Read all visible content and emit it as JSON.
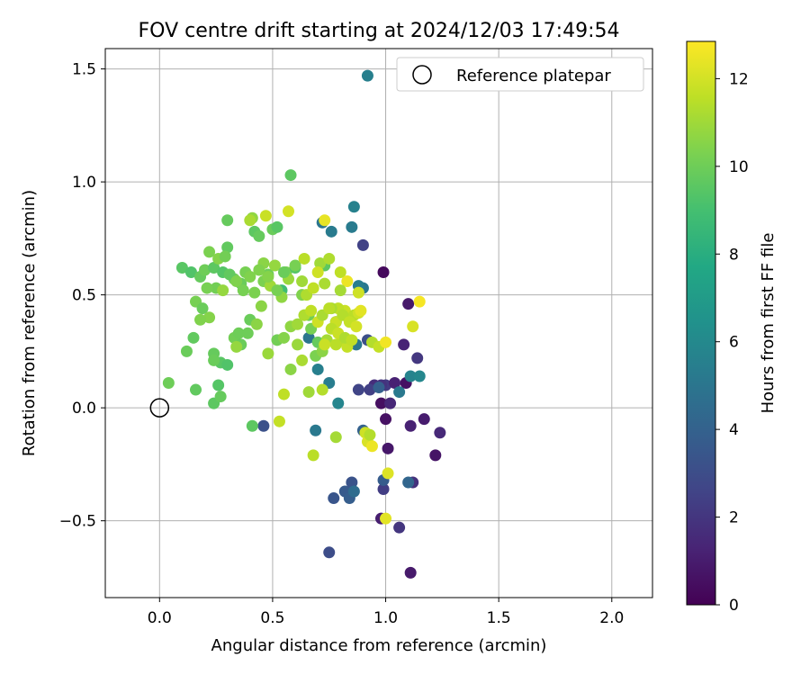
{
  "chart_data": {
    "type": "scatter",
    "title": "FOV centre drift starting at 2024/12/03 17:49:54",
    "xlabel": "Angular distance from reference (arcmin)",
    "ylabel": "Rotation from reference (arcmin)",
    "xlim": [
      -0.24,
      2.18
    ],
    "ylim": [
      -0.84,
      1.59
    ],
    "xticks": [
      0.0,
      0.5,
      1.0,
      1.5,
      2.0
    ],
    "xtick_labels": [
      "0.0",
      "0.5",
      "1.0",
      "1.5",
      "2.0"
    ],
    "yticks": [
      -0.5,
      0.0,
      0.5,
      1.0,
      1.5
    ],
    "ytick_labels": [
      "−0.5",
      "0.0",
      "0.5",
      "1.0",
      "1.5"
    ],
    "grid": true,
    "legend": {
      "placement": "top-right",
      "entries": [
        "Reference platepar"
      ]
    },
    "reference_point": {
      "name": "Reference platepar",
      "x": 0.0,
      "y": 0.0
    },
    "colorbar": {
      "label": "Hours from first FF file",
      "range": [
        0,
        12.85
      ],
      "ticks": [
        0,
        2,
        4,
        6,
        8,
        10,
        12
      ],
      "tick_labels": [
        "0",
        "2",
        "4",
        "6",
        "8",
        "10",
        "12"
      ],
      "colormap": "viridis"
    },
    "series": [
      {
        "x": [
          0.99,
          0.98,
          1.0,
          1.01,
          1.1,
          1.11,
          1.17,
          1.24,
          1.22,
          1.12,
          1.14,
          1.08,
          1.02,
          1.0,
          0.99,
          0.98,
          1.06,
          1.11,
          1.09,
          0.95,
          0.93,
          0.9,
          0.98,
          0.88,
          1.04
        ],
        "y": [
          0.6,
          0.02,
          -0.05,
          -0.18,
          0.46,
          -0.08,
          -0.05,
          -0.11,
          -0.21,
          -0.33,
          0.22,
          0.28,
          0.02,
          0.1,
          -0.36,
          -0.49,
          -0.53,
          -0.73,
          0.11,
          0.1,
          0.08,
          0.72,
          0.1,
          0.08,
          0.11
        ],
        "hours": [
          0.3,
          0.5,
          0.6,
          0.8,
          0.9,
          1.2,
          1.0,
          1.5,
          0.7,
          1.8,
          2.1,
          1.3,
          1.4,
          2.2,
          2.3,
          1.1,
          2.0,
          0.9,
          0.6,
          1.7,
          2.4,
          2.5,
          1.9,
          2.6,
          1.2
        ]
      },
      {
        "x": [
          0.46,
          0.75,
          0.77,
          0.82,
          0.84,
          0.85,
          0.86,
          0.9,
          0.99,
          0.97,
          1.1,
          1.06,
          0.72,
          0.76,
          0.86,
          0.9,
          0.88,
          0.92,
          1.11,
          1.15,
          0.69,
          0.66,
          0.75,
          0.79,
          0.83,
          0.87,
          0.85,
          0.78,
          0.7,
          0.92
        ],
        "y": [
          -0.08,
          -0.64,
          -0.4,
          -0.37,
          -0.4,
          -0.33,
          -0.37,
          -0.1,
          -0.32,
          0.09,
          -0.33,
          0.07,
          0.82,
          0.78,
          0.89,
          0.53,
          0.54,
          1.47,
          0.14,
          0.14,
          -0.1,
          0.31,
          0.11,
          0.02,
          0.29,
          0.28,
          0.8,
          0.38,
          0.17,
          0.3
        ],
        "hours": [
          3.2,
          3.0,
          3.4,
          3.6,
          3.8,
          3.3,
          4.5,
          4.0,
          3.7,
          3.9,
          4.2,
          5.2,
          5.0,
          5.3,
          5.6,
          5.1,
          5.4,
          5.5,
          5.7,
          5.9,
          5.2,
          5.0,
          5.4,
          5.8,
          4.8,
          5.1,
          5.3,
          5.7,
          5.5,
          3.1
        ]
      },
      {
        "x": [
          0.1,
          0.14,
          0.18,
          0.2,
          0.22,
          0.24,
          0.26,
          0.28,
          0.3,
          0.33,
          0.36,
          0.38,
          0.4,
          0.42,
          0.44,
          0.46,
          0.48,
          0.5,
          0.52,
          0.54,
          0.56,
          0.58,
          0.6,
          0.16,
          0.19,
          0.22,
          0.25,
          0.28,
          0.31,
          0.34,
          0.37,
          0.4,
          0.43,
          0.46,
          0.49,
          0.52,
          0.55,
          0.58,
          0.61,
          0.64,
          0.67,
          0.7,
          0.73,
          0.12,
          0.15,
          0.18,
          0.21,
          0.24,
          0.27,
          0.3,
          0.33,
          0.36,
          0.39,
          0.42,
          0.45,
          0.48,
          0.51,
          0.54,
          0.57,
          0.6,
          0.63,
          0.66,
          0.69,
          0.72,
          0.26,
          0.24,
          0.3,
          0.35,
          0.41,
          0.55,
          0.04,
          0.16,
          0.24,
          0.27,
          0.29,
          0.41,
          0.52,
          0.44,
          0.34,
          0.48,
          0.58
        ],
        "y": [
          0.62,
          0.6,
          0.58,
          0.61,
          0.69,
          0.62,
          0.66,
          0.6,
          0.71,
          0.57,
          0.55,
          0.6,
          0.58,
          0.78,
          0.76,
          0.64,
          0.59,
          0.79,
          0.8,
          0.52,
          0.6,
          1.03,
          0.62,
          0.47,
          0.44,
          0.4,
          0.53,
          0.52,
          0.59,
          0.56,
          0.52,
          0.39,
          0.37,
          0.56,
          0.54,
          0.3,
          0.31,
          0.36,
          0.28,
          0.41,
          0.35,
          0.29,
          0.63,
          0.25,
          0.31,
          0.39,
          0.53,
          0.24,
          0.2,
          0.19,
          0.31,
          0.28,
          0.33,
          0.51,
          0.45,
          0.58,
          0.63,
          0.49,
          0.57,
          0.63,
          0.5,
          0.41,
          0.23,
          0.25,
          0.1,
          0.02,
          0.83,
          0.33,
          0.84,
          0.6,
          0.11,
          0.08,
          0.21,
          0.05,
          0.67,
          -0.08,
          0.52,
          0.61,
          0.27,
          0.24,
          0.17
        ],
        "hours": [
          9.5,
          9.3,
          9.8,
          10.0,
          10.3,
          9.6,
          10.5,
          9.4,
          9.7,
          10.1,
          9.9,
          10.2,
          10.4,
          9.6,
          9.8,
          10.6,
          10.0,
          9.9,
          9.5,
          8.8,
          10.3,
          9.6,
          9.4,
          10.2,
          9.9,
          10.5,
          10.1,
          10.8,
          9.7,
          10.4,
          10.2,
          9.9,
          10.6,
          10.3,
          11.0,
          10.1,
          10.5,
          10.7,
          10.9,
          10.4,
          10.2,
          9.8,
          9.6,
          9.9,
          9.7,
          10.4,
          10.2,
          9.8,
          9.5,
          9.3,
          10.1,
          9.9,
          10.0,
          10.3,
          10.6,
          10.5,
          10.8,
          10.7,
          10.9,
          10.2,
          10.4,
          10.1,
          10.3,
          10.6,
          9.4,
          9.6,
          9.8,
          10.0,
          10.7,
          9.9,
          10.0,
          9.7,
          9.9,
          9.8,
          10.1,
          9.6,
          10.2,
          10.4,
          10.8,
          10.9,
          10.6
        ]
      },
      {
        "x": [
          0.4,
          0.47,
          0.57,
          0.64,
          0.71,
          0.73,
          0.75,
          0.8,
          0.83,
          0.88,
          0.94,
          0.97,
          1.0,
          1.01,
          1.12,
          1.15,
          0.8,
          0.82,
          0.86,
          0.88,
          0.89,
          0.79,
          0.76,
          0.81,
          0.83,
          0.61,
          0.64,
          0.67,
          0.7,
          0.72,
          0.75,
          0.78,
          0.81,
          0.84,
          0.87,
          0.74,
          0.78,
          0.63,
          0.65,
          0.68,
          0.7,
          0.73,
          0.76,
          0.79,
          0.82,
          0.85,
          0.91,
          0.92,
          0.93,
          0.94,
          1.0,
          0.55,
          0.66,
          0.72,
          0.53,
          0.63,
          0.68,
          0.73,
          0.78
        ],
        "y": [
          0.83,
          0.85,
          0.87,
          0.66,
          0.64,
          0.83,
          0.66,
          0.6,
          0.56,
          0.51,
          0.29,
          0.27,
          0.29,
          -0.29,
          0.36,
          0.47,
          0.52,
          0.43,
          0.41,
          0.42,
          0.43,
          0.44,
          0.44,
          0.3,
          0.27,
          0.37,
          0.41,
          0.43,
          0.38,
          0.41,
          0.44,
          0.38,
          0.41,
          0.38,
          0.36,
          0.3,
          0.28,
          0.56,
          0.5,
          0.53,
          0.6,
          0.55,
          0.35,
          0.33,
          0.31,
          0.3,
          -0.11,
          -0.15,
          -0.12,
          -0.17,
          -0.49,
          0.06,
          0.07,
          0.08,
          -0.06,
          0.21,
          -0.21,
          0.28,
          -0.13
        ],
        "hours": [
          11.2,
          11.8,
          12.0,
          11.5,
          11.0,
          12.4,
          11.3,
          11.6,
          12.5,
          11.9,
          11.4,
          11.7,
          12.6,
          12.2,
          12.1,
          12.7,
          11.1,
          11.8,
          11.5,
          11.9,
          12.3,
          11.6,
          11.2,
          11.4,
          11.7,
          11.0,
          11.3,
          11.6,
          11.9,
          11.2,
          11.5,
          11.8,
          11.4,
          11.7,
          12.0,
          11.1,
          11.5,
          11.0,
          11.3,
          11.6,
          11.9,
          11.2,
          11.5,
          11.8,
          11.3,
          11.6,
          11.9,
          12.1,
          11.4,
          12.5,
          12.3,
          11.6,
          11.0,
          11.4,
          11.7,
          11.2,
          11.5,
          11.8,
          11.1
        ]
      }
    ]
  }
}
